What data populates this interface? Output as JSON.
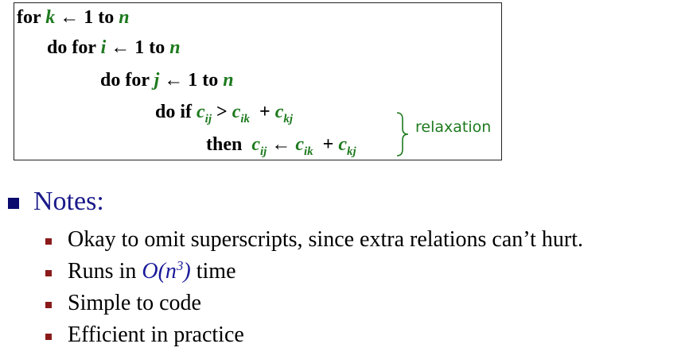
{
  "algorithm": {
    "line1": {
      "kw_for": "for",
      "var_k": "k",
      "arrow": "←",
      "one": "1",
      "kw_to": "to",
      "var_n": "n"
    },
    "line2": {
      "kw_do_for": "do for",
      "var_i": "i",
      "arrow": "←",
      "one": "1",
      "kw_to": "to",
      "var_n": "n"
    },
    "line3": {
      "kw_do_for": "do for",
      "var_j": "j",
      "arrow": "←",
      "one": "1",
      "kw_to": "to",
      "var_n": "n"
    },
    "line4": {
      "kw_do_if": "do if",
      "c": "c",
      "sub_ij": "ij",
      "gt": ">",
      "sub_ik": "ik",
      "plus": "+",
      "sub_kj": "kj"
    },
    "line5": {
      "kw_then": "then",
      "c": "c",
      "sub_ij": "ij",
      "arrow": "←",
      "sub_ik": "ik",
      "plus": "+",
      "sub_kj": "kj"
    },
    "annotation": "relaxation"
  },
  "notes": {
    "heading": "Notes:",
    "item1": "Okay to omit superscripts, since extra relations can’t hurt.",
    "item2": {
      "prefix": "Runs in ",
      "complexity": "O(n",
      "exponent": "3",
      "close": ")",
      "suffix": " time"
    },
    "item3": "Simple to code",
    "item4": "Efficient in practice"
  },
  "colors": {
    "variable": "#1e7a1e",
    "heading": "#1a1a8a",
    "sub_bullet": "#8a1a1a"
  }
}
